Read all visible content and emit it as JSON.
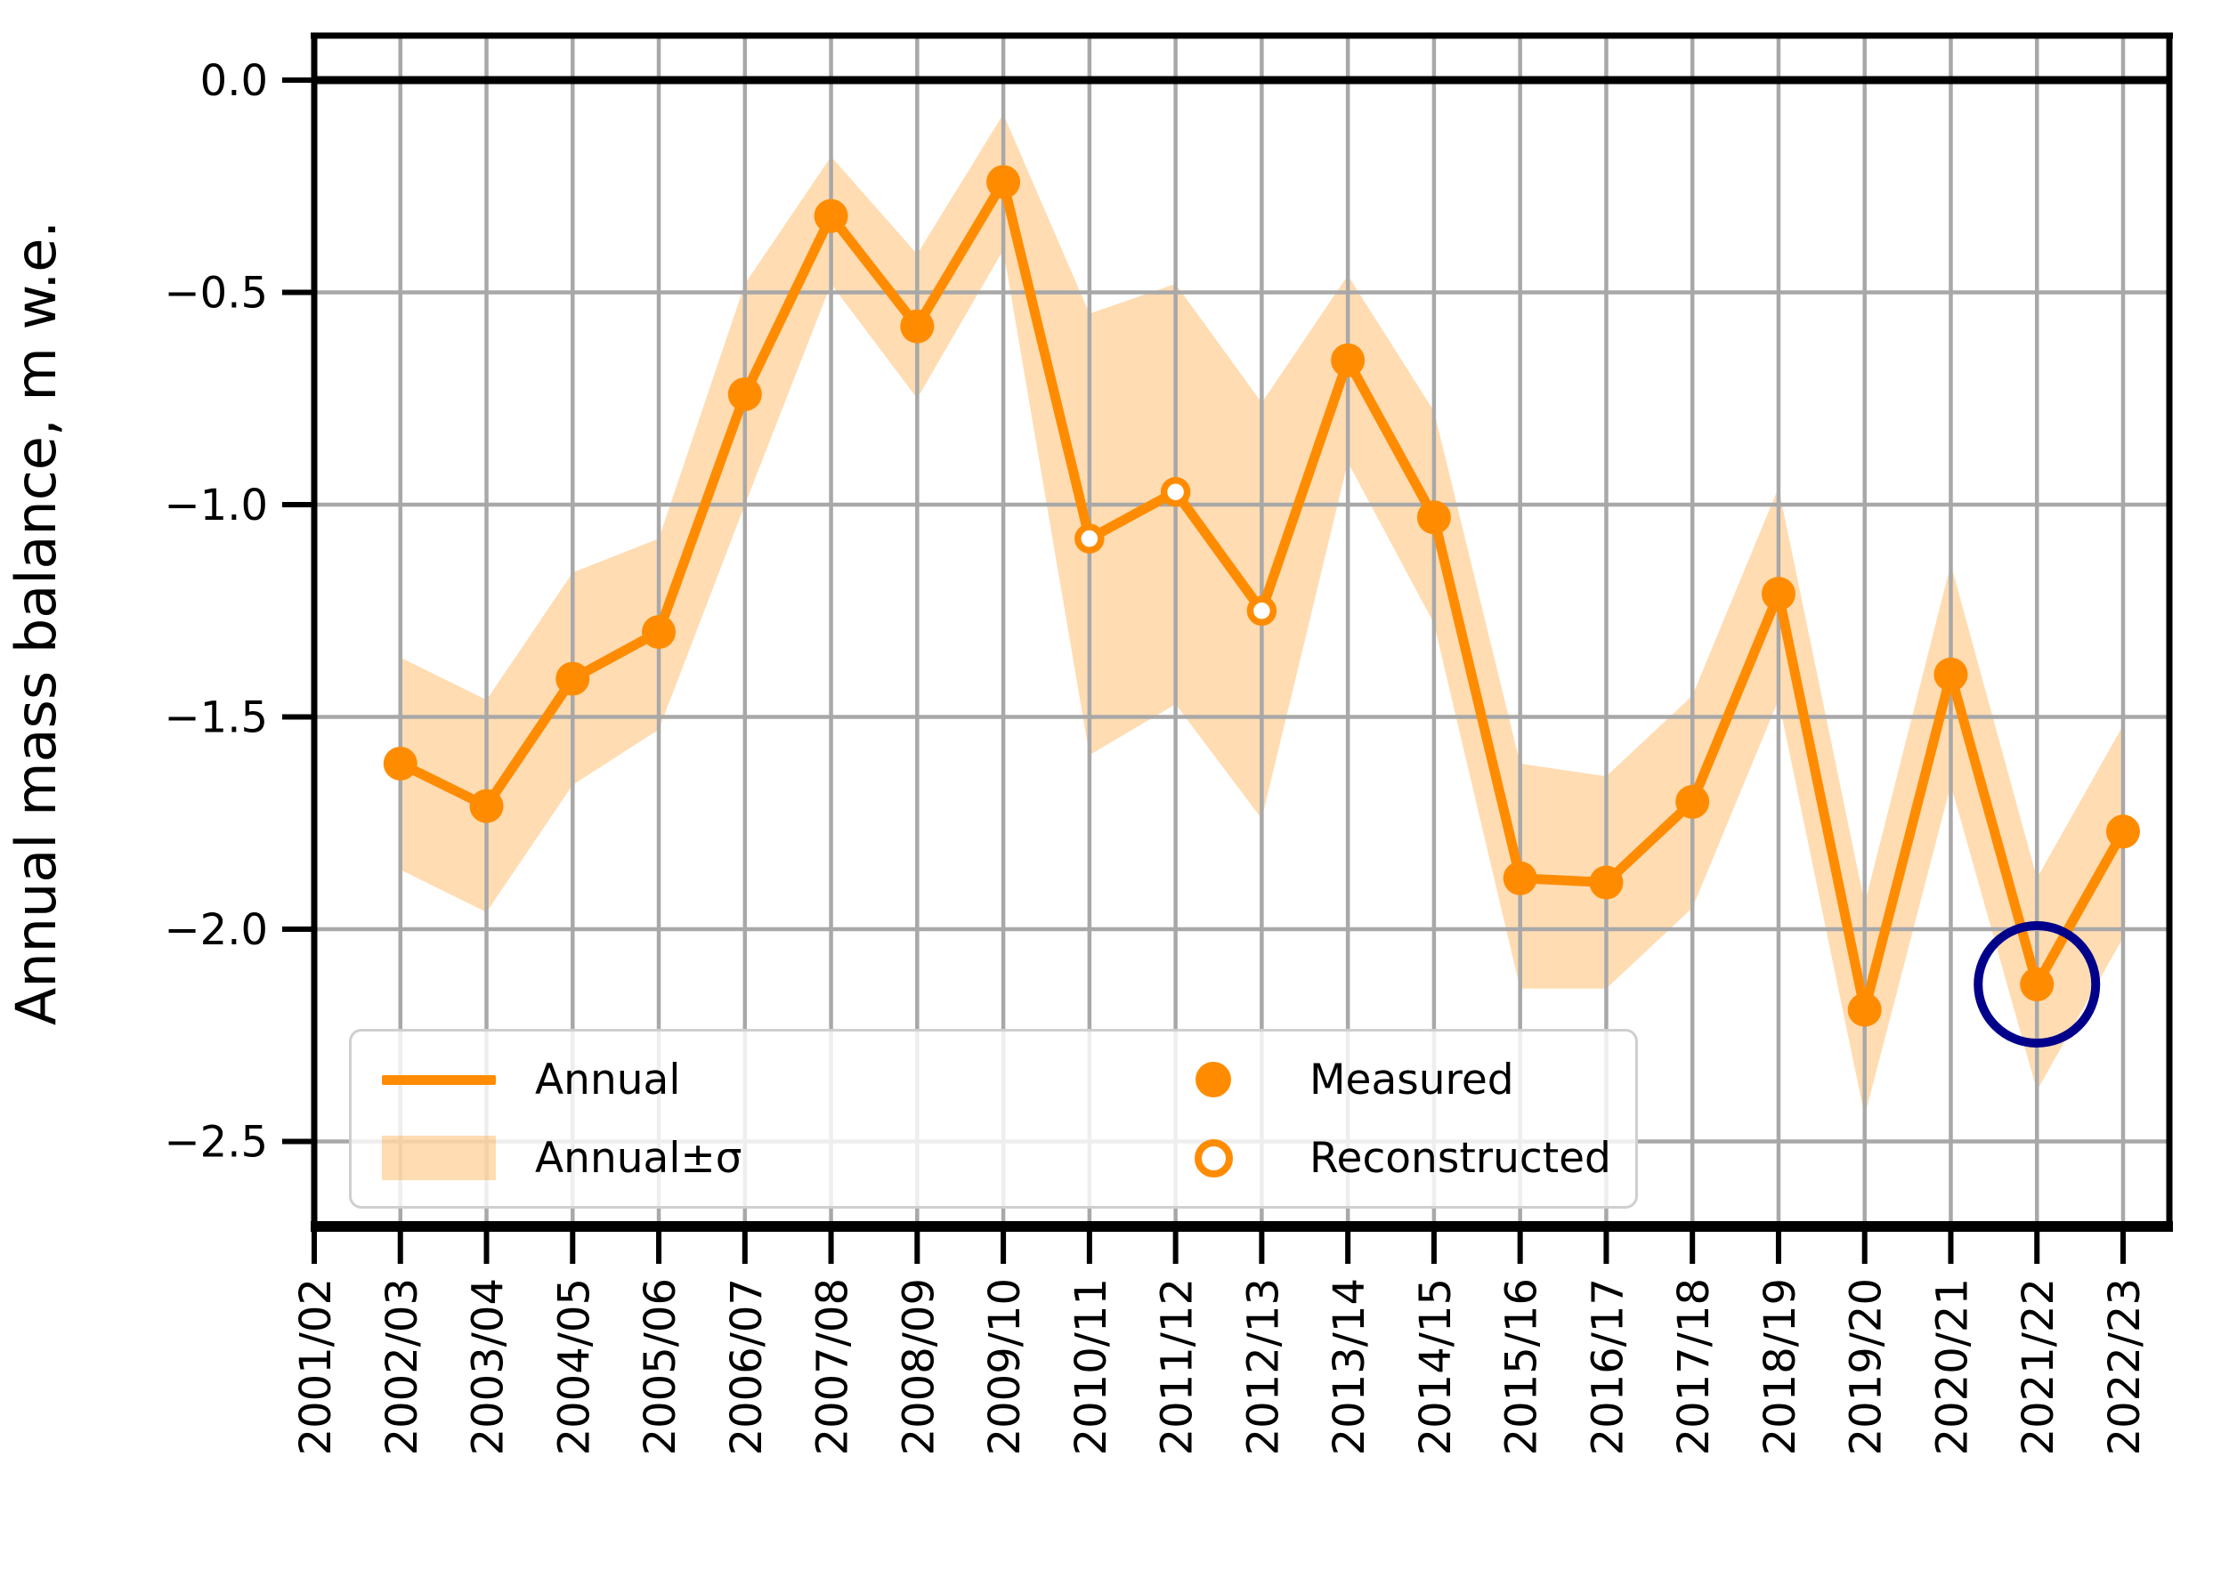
{
  "figure": {
    "ylabel": "Annual mass balance, m w.e."
  },
  "legend": {
    "items": [
      {
        "label": "Annual"
      },
      {
        "label": "Measured"
      },
      {
        "label": "Annual±σ"
      },
      {
        "label": "Reconstructed"
      }
    ]
  },
  "chart_data": {
    "type": "line",
    "title": "",
    "xlabel": "",
    "ylabel": "Annual mass balance, m w.e.",
    "categories": [
      "2001/02",
      "2002/03",
      "2003/04",
      "2004/05",
      "2005/06",
      "2006/07",
      "2007/08",
      "2008/09",
      "2009/10",
      "2010/11",
      "2011/12",
      "2012/13",
      "2013/14",
      "2014/15",
      "2015/16",
      "2016/17",
      "2017/18",
      "2018/19",
      "2019/20",
      "2020/21",
      "2021/22",
      "2022/23"
    ],
    "ytick_values": [
      0.0,
      -0.5,
      -1.0,
      -1.5,
      -2.0,
      -2.5
    ],
    "ytick_labels": [
      "0.0",
      "−0.5",
      "−1.0",
      "−1.5",
      "−2.0",
      "−2.5"
    ],
    "ylim": [
      -2.7,
      0.1
    ],
    "grid": true,
    "zero_line": 0.0,
    "legend_position": "lower left",
    "series": [
      {
        "name": "Annual",
        "x": [
          "2002/03",
          "2003/04",
          "2004/05",
          "2005/06",
          "2006/07",
          "2007/08",
          "2008/09",
          "2009/10",
          "2010/11",
          "2011/12",
          "2012/13",
          "2013/14",
          "2014/15",
          "2015/16",
          "2016/17",
          "2017/18",
          "2018/19",
          "2019/20",
          "2020/21",
          "2021/22",
          "2022/23"
        ],
        "values": [
          -1.61,
          -1.71,
          -1.41,
          -1.3,
          -0.74,
          -0.32,
          -0.58,
          -0.24,
          -1.08,
          -0.97,
          -1.25,
          -0.66,
          -1.03,
          -1.88,
          -1.89,
          -1.7,
          -1.21,
          -2.19,
          -1.4,
          -2.13,
          -1.77
        ],
        "point_types": [
          "measured",
          "measured",
          "measured",
          "measured",
          "measured",
          "measured",
          "measured",
          "measured",
          "reconstructed",
          "reconstructed",
          "reconstructed",
          "measured",
          "measured",
          "measured",
          "measured",
          "measured",
          "measured",
          "measured",
          "measured",
          "measured",
          "measured"
        ]
      }
    ],
    "band": {
      "name": "Annual±σ",
      "x": [
        "2002/03",
        "2003/04",
        "2004/05",
        "2005/06",
        "2006/07",
        "2007/08",
        "2008/09",
        "2009/10",
        "2010/11",
        "2011/12",
        "2012/13",
        "2013/14",
        "2014/15",
        "2015/16",
        "2016/17",
        "2017/18",
        "2018/19",
        "2019/20",
        "2020/21",
        "2021/22",
        "2022/23"
      ],
      "upper": [
        -1.36,
        -1.46,
        -1.16,
        -1.08,
        -0.48,
        -0.18,
        -0.41,
        -0.08,
        -0.55,
        -0.48,
        -0.76,
        -0.46,
        -0.78,
        -1.61,
        -1.64,
        -1.45,
        -0.96,
        -1.94,
        -1.14,
        -1.88,
        -1.52
      ],
      "lower": [
        -1.86,
        -1.96,
        -1.66,
        -1.53,
        -1.0,
        -0.48,
        -0.75,
        -0.4,
        -1.59,
        -1.47,
        -1.74,
        -0.9,
        -1.28,
        -2.14,
        -2.14,
        -1.95,
        -1.46,
        -2.44,
        -1.66,
        -2.38,
        -2.02
      ]
    },
    "reconstructed_years": [
      "2010/11",
      "2011/12",
      "2012/13"
    ],
    "highlight": {
      "year": "2021/22",
      "value": -2.13,
      "shape": "circle-outline"
    },
    "colors": {
      "line": "#ff8c00",
      "band_fill": "#ff8c00",
      "band_opacity": 0.3,
      "grid": "#a8a8a8",
      "axis": "#000000",
      "highlight": "#00008b",
      "text": "#000000"
    }
  }
}
